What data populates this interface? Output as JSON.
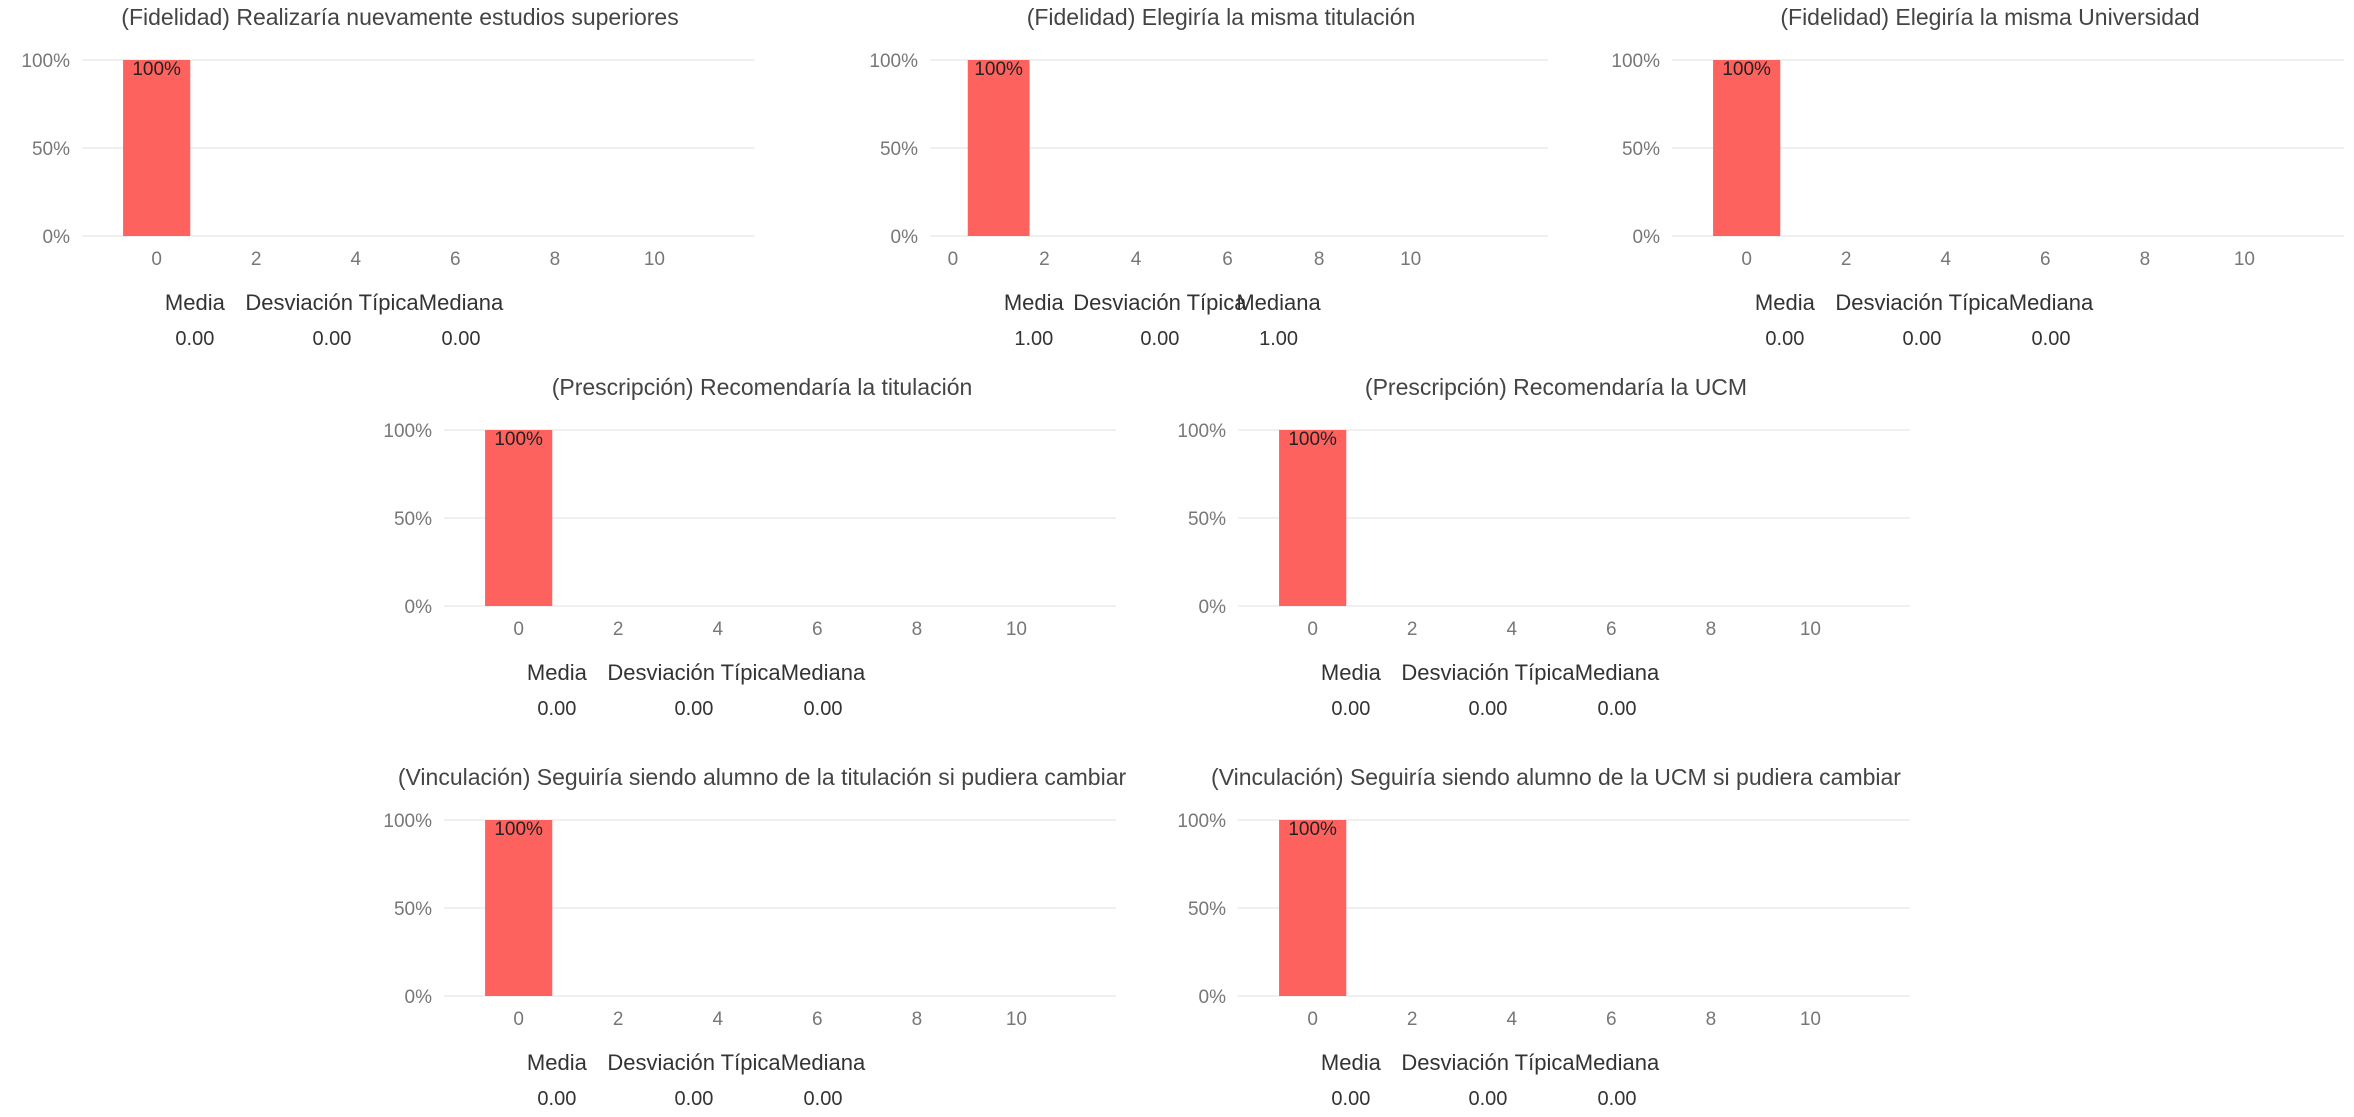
{
  "colors": {
    "bar": "#fd625e",
    "grid": "#e6e6e6",
    "tick": "#777777"
  },
  "stats_labels": {
    "mean": "Media",
    "std": "Desviación Típica",
    "median": "Mediana"
  },
  "chart_data": [
    {
      "type": "bar",
      "title": "(Fidelidad) Realizaría nuevamente estudios superiores",
      "x": [
        0
      ],
      "values": [
        100
      ],
      "data_labels": [
        "100%"
      ],
      "xlim": [
        -1.5,
        12
      ],
      "xticks": [
        "0",
        "2",
        "4",
        "6",
        "8",
        "10"
      ],
      "ylim": [
        0,
        100
      ],
      "yticks": [
        "0%",
        "50%",
        "100%"
      ],
      "grid": true,
      "stats": {
        "mean": "0.00",
        "std": "0.00",
        "median": "0.00"
      }
    },
    {
      "type": "bar",
      "title": "(Fidelidad) Elegiría la misma titulación",
      "x": [
        1
      ],
      "values": [
        100
      ],
      "data_labels": [
        "100%"
      ],
      "xlim": [
        -0.5,
        13
      ],
      "xticks": [
        "0",
        "2",
        "4",
        "6",
        "8",
        "10"
      ],
      "ylim": [
        0,
        100
      ],
      "yticks": [
        "0%",
        "50%",
        "100%"
      ],
      "grid": true,
      "stats": {
        "mean": "1.00",
        "std": "0.00",
        "median": "1.00"
      }
    },
    {
      "type": "bar",
      "title": "(Fidelidad) Elegiría la misma Universidad",
      "x": [
        0
      ],
      "values": [
        100
      ],
      "data_labels": [
        "100%"
      ],
      "xlim": [
        -1.5,
        12
      ],
      "xticks": [
        "0",
        "2",
        "4",
        "6",
        "8",
        "10"
      ],
      "ylim": [
        0,
        100
      ],
      "yticks": [
        "0%",
        "50%",
        "100%"
      ],
      "grid": true,
      "stats": {
        "mean": "0.00",
        "std": "0.00",
        "median": "0.00"
      }
    },
    {
      "type": "bar",
      "title": "(Prescripción) Recomendaría la titulación",
      "x": [
        0
      ],
      "values": [
        100
      ],
      "data_labels": [
        "100%"
      ],
      "xlim": [
        -1.5,
        12
      ],
      "xticks": [
        "0",
        "2",
        "4",
        "6",
        "8",
        "10"
      ],
      "ylim": [
        0,
        100
      ],
      "yticks": [
        "0%",
        "50%",
        "100%"
      ],
      "grid": true,
      "stats": {
        "mean": "0.00",
        "std": "0.00",
        "median": "0.00"
      }
    },
    {
      "type": "bar",
      "title": "(Prescripción) Recomendaría la UCM",
      "x": [
        0
      ],
      "values": [
        100
      ],
      "data_labels": [
        "100%"
      ],
      "xlim": [
        -1.5,
        12
      ],
      "xticks": [
        "0",
        "2",
        "4",
        "6",
        "8",
        "10"
      ],
      "ylim": [
        0,
        100
      ],
      "yticks": [
        "0%",
        "50%",
        "100%"
      ],
      "grid": true,
      "stats": {
        "mean": "0.00",
        "std": "0.00",
        "median": "0.00"
      }
    },
    {
      "type": "bar",
      "title": "(Vinculación) Seguiría siendo alumno de la titulación si pudiera cambiar",
      "x": [
        0
      ],
      "values": [
        100
      ],
      "data_labels": [
        "100%"
      ],
      "xlim": [
        -1.5,
        12
      ],
      "xticks": [
        "0",
        "2",
        "4",
        "6",
        "8",
        "10"
      ],
      "ylim": [
        0,
        100
      ],
      "yticks": [
        "0%",
        "50%",
        "100%"
      ],
      "grid": true,
      "stats": {
        "mean": "0.00",
        "std": "0.00",
        "median": "0.00"
      }
    },
    {
      "type": "bar",
      "title": "(Vinculación) Seguiría siendo alumno de la UCM si pudiera cambiar",
      "x": [
        0
      ],
      "values": [
        100
      ],
      "data_labels": [
        "100%"
      ],
      "xlim": [
        -1.5,
        12
      ],
      "xticks": [
        "0",
        "2",
        "4",
        "6",
        "8",
        "10"
      ],
      "ylim": [
        0,
        100
      ],
      "yticks": [
        "0%",
        "50%",
        "100%"
      ],
      "grid": true,
      "stats": {
        "mean": "0.00",
        "std": "0.00",
        "median": "0.00"
      }
    }
  ]
}
